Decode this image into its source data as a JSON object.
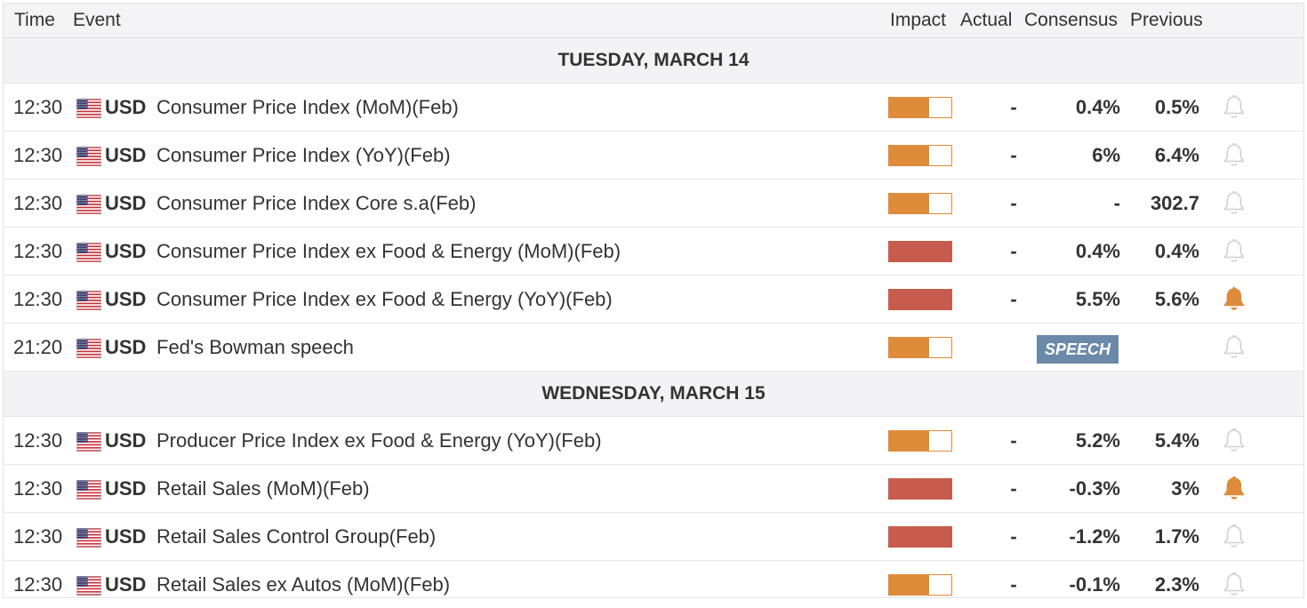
{
  "header": {
    "time": "Time",
    "event": "Event",
    "impact": "Impact",
    "actual": "Actual",
    "consensus": "Consensus",
    "previous": "Previous"
  },
  "colors": {
    "medium_impact": "#df8c3a",
    "high_impact": "#c75c4e",
    "speech_badge": "#6b89a8",
    "bell_active": "#df8c3a",
    "bell_inactive": "#d0d0d0"
  },
  "days": [
    {
      "label": "TUESDAY, MARCH 14",
      "events": [
        {
          "time": "12:30",
          "flag": "us-flag-icon",
          "currency": "USD",
          "event": "Consumer Price Index (MoM)(Feb)",
          "impact": "medium",
          "actual": "-",
          "consensus": "0.4%",
          "previous": "0.5%",
          "alert": false
        },
        {
          "time": "12:30",
          "flag": "us-flag-icon",
          "currency": "USD",
          "event": "Consumer Price Index (YoY)(Feb)",
          "impact": "medium",
          "actual": "-",
          "consensus": "6%",
          "previous": "6.4%",
          "alert": false
        },
        {
          "time": "12:30",
          "flag": "us-flag-icon",
          "currency": "USD",
          "event": "Consumer Price Index Core s.a(Feb)",
          "impact": "medium",
          "actual": "-",
          "consensus": "-",
          "previous": "302.7",
          "alert": false
        },
        {
          "time": "12:30",
          "flag": "us-flag-icon",
          "currency": "USD",
          "event": "Consumer Price Index ex Food & Energy (MoM)(Feb)",
          "impact": "high",
          "actual": "-",
          "consensus": "0.4%",
          "previous": "0.4%",
          "alert": false
        },
        {
          "time": "12:30",
          "flag": "us-flag-icon",
          "currency": "USD",
          "event": "Consumer Price Index ex Food & Energy (YoY)(Feb)",
          "impact": "high",
          "actual": "-",
          "consensus": "5.5%",
          "previous": "5.6%",
          "alert": true
        },
        {
          "time": "21:20",
          "flag": "us-flag-icon",
          "currency": "USD",
          "event": "Fed's Bowman speech",
          "impact": "medium",
          "speech": "SPEECH",
          "alert": false
        }
      ]
    },
    {
      "label": "WEDNESDAY, MARCH 15",
      "events": [
        {
          "time": "12:30",
          "flag": "us-flag-icon",
          "currency": "USD",
          "event": "Producer Price Index ex Food & Energy (YoY)(Feb)",
          "impact": "medium",
          "actual": "-",
          "consensus": "5.2%",
          "previous": "5.4%",
          "alert": false
        },
        {
          "time": "12:30",
          "flag": "us-flag-icon",
          "currency": "USD",
          "event": "Retail Sales (MoM)(Feb)",
          "impact": "high",
          "actual": "-",
          "consensus": "-0.3%",
          "previous": "3%",
          "alert": true
        },
        {
          "time": "12:30",
          "flag": "us-flag-icon",
          "currency": "USD",
          "event": "Retail Sales Control Group(Feb)",
          "impact": "high",
          "actual": "-",
          "consensus": "-1.2%",
          "previous": "1.7%",
          "alert": false
        },
        {
          "time": "12:30",
          "flag": "us-flag-icon",
          "currency": "USD",
          "event": "Retail Sales ex Autos (MoM)(Feb)",
          "impact": "medium",
          "actual": "-",
          "consensus": "-0.1%",
          "previous": "2.3%",
          "alert": false
        }
      ]
    }
  ]
}
